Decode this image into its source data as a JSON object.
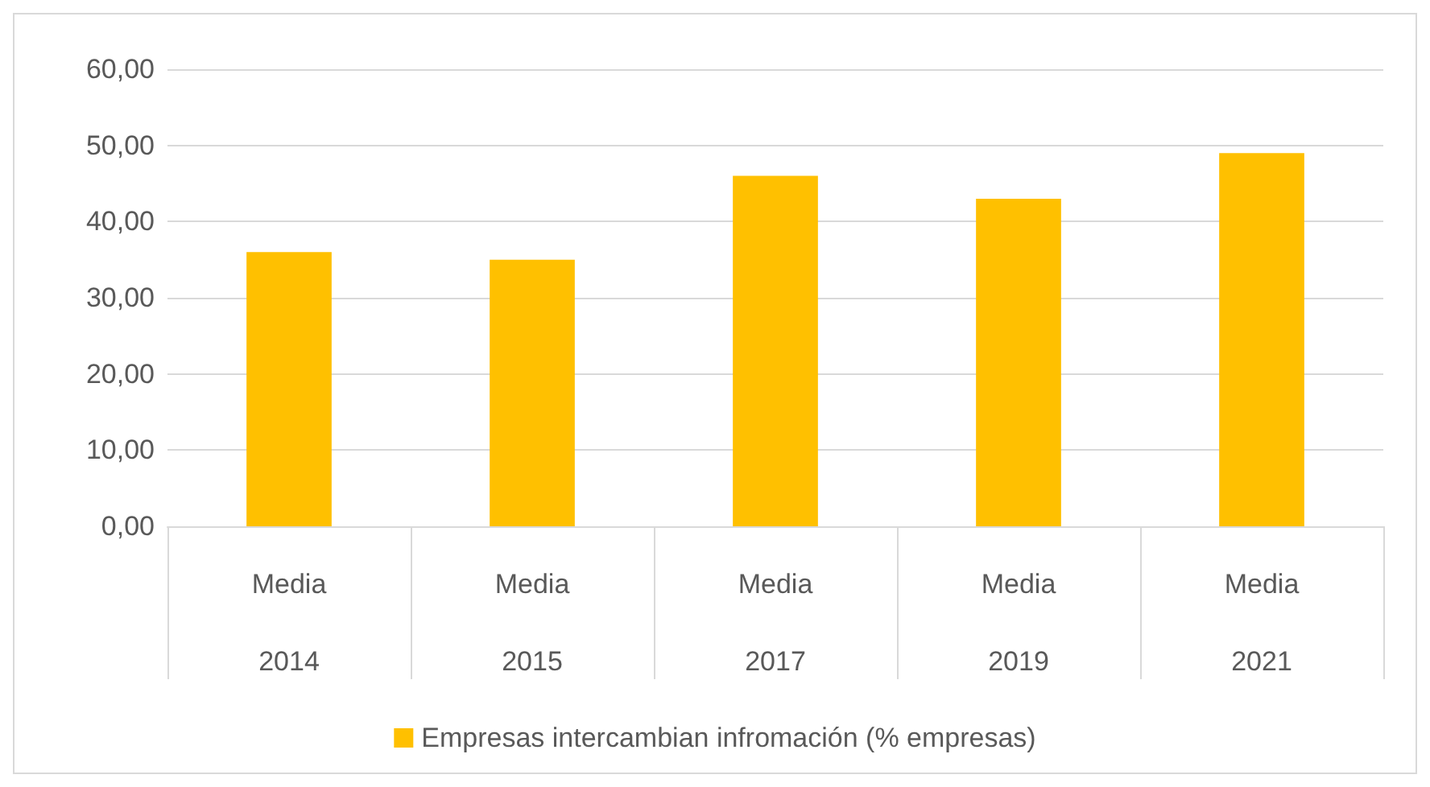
{
  "chart_data": {
    "type": "bar",
    "categories": [
      "Media\n2014",
      "Media\n2015",
      "Media\n2017",
      "Media\n2019",
      "Media\n2021"
    ],
    "series": [
      {
        "name": "Empresas intercambian infromación (% empresas)",
        "color": "#ffc000",
        "values": [
          36,
          35,
          46,
          43,
          49
        ]
      }
    ],
    "ylim": [
      0,
      60
    ],
    "yticks": [
      {
        "value": 0,
        "label": "0,00"
      },
      {
        "value": 10,
        "label": "10,00"
      },
      {
        "value": 20,
        "label": "20,00"
      },
      {
        "value": 30,
        "label": "30,00"
      },
      {
        "value": 40,
        "label": "40,00"
      },
      {
        "value": 50,
        "label": "50,00"
      },
      {
        "value": 60,
        "label": "60,00"
      }
    ],
    "grid": "y",
    "legend": "bottom"
  }
}
